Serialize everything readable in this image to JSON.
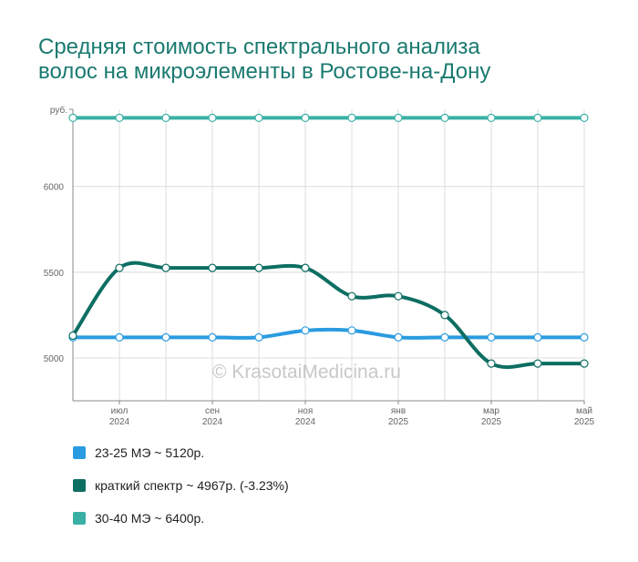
{
  "title_lines": [
    "Средняя стоимость спектрального анализа",
    "волос на микроэлементы в Ростове-на-Дону"
  ],
  "watermark": "© KrasotaiMedicina.ru",
  "chart_data": {
    "type": "line",
    "y_unit": "руб.",
    "ylim": [
      4750,
      6450
    ],
    "yticks": [
      5000,
      5500,
      6000
    ],
    "x": [
      "2024-06",
      "2024-07",
      "2024-08",
      "2024-09",
      "2024-10",
      "2024-11",
      "2024-12",
      "2025-01",
      "2025-02",
      "2025-03",
      "2025-04",
      "2025-05"
    ],
    "x_tick_labels": [
      {
        "x": "2024-07",
        "month": "июл",
        "year": "2024"
      },
      {
        "x": "2024-09",
        "month": "сен",
        "year": "2024"
      },
      {
        "x": "2024-11",
        "month": "ноя",
        "year": "2024"
      },
      {
        "x": "2025-01",
        "month": "янв",
        "year": "2025"
      },
      {
        "x": "2025-03",
        "month": "мар",
        "year": "2025"
      },
      {
        "x": "2025-05",
        "month": "май",
        "year": "2025"
      }
    ],
    "grid": true,
    "legend_position": "bottom",
    "series": [
      {
        "name": "23-25 МЭ ~ 5120р.",
        "color": "#2a9be0",
        "values": [
          5120,
          5120,
          5120,
          5120,
          5120,
          5160,
          5160,
          5120,
          5120,
          5120,
          5120,
          5120
        ]
      },
      {
        "name": "краткий спектр ~ 4967р. (-3.23%)",
        "color": "#0d6e62",
        "values": [
          5130,
          5525,
          5525,
          5525,
          5525,
          5525,
          5360,
          5360,
          5250,
          4967,
          4967,
          4967
        ]
      },
      {
        "name": "30-40 МЭ ~ 6400р.",
        "color": "#3ab0a5",
        "values": [
          6400,
          6400,
          6400,
          6400,
          6400,
          6400,
          6400,
          6400,
          6400,
          6400,
          6400,
          6400
        ]
      }
    ]
  }
}
